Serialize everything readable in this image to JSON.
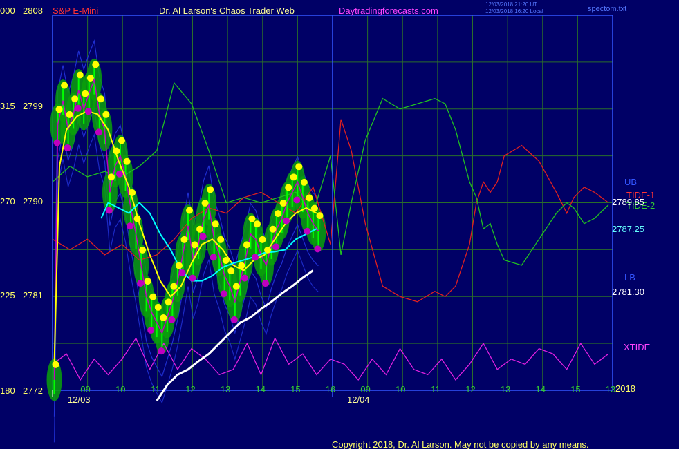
{
  "header": {
    "symbol": "S&P E-Mini",
    "title": "Dr. Al Larson's Chaos Trader Web",
    "site": "Daytradingforecasts.com",
    "timestamp_line1": "12/03/2018 21:20 UT",
    "timestamp_line2": "12/03/2018 16:20 Local",
    "spectrum_file": "spectom.txt"
  },
  "copyright": "Copyright 2018, Dr. Al Larson. May not be copied by any means.",
  "colors": {
    "background": "#000066",
    "grid": "#2a6e2a",
    "price_bars": "#00ff00",
    "halo": "#0aa00a",
    "high_dots": "#ffff00",
    "low_dots": "#c000c0",
    "yellow_ma": "#ffff00",
    "cyan_ma": "#00ffff",
    "white_ma": "#ffffff",
    "tide_1": "#e02020",
    "tide_2": "#20c020",
    "xtide": "#e020e0",
    "bands": "#2233dd"
  },
  "chart_data": {
    "type": "line",
    "title": "S&P E-Mini",
    "xlabel": "",
    "ylabel": "",
    "ylim": [
      2772,
      2808
    ],
    "grid": true,
    "y_ticks_price": [
      "2808",
      "2799",
      "2790",
      "2781",
      "2772"
    ],
    "y_ticks_left_scale": [
      "000",
      "315",
      "270",
      "225",
      "180"
    ],
    "x_tick_labels": [
      "09",
      "10",
      "11",
      "12",
      "13",
      "14",
      "15",
      "16",
      "09",
      "10",
      "11",
      "12",
      "13",
      "14",
      "15",
      "13"
    ],
    "year_label": "2018",
    "date_labels": [
      "12/03",
      "12/04"
    ],
    "right_labels": {
      "ub": "UB",
      "tide_1": "TIDE-1",
      "tide_2": "TIDE-2",
      "price_1": "2789.85",
      "price_2": "2787.25",
      "lb": "LB",
      "price_3": "2781.30",
      "xtide": "XTIDE"
    },
    "x_domain": [
      0,
      16
    ],
    "series": [
      {
        "name": "S&P E-Mini",
        "x": [
          0.05,
          0.15,
          0.3,
          0.45,
          0.6,
          0.75,
          0.9,
          1.05,
          1.2,
          1.35,
          1.5,
          1.65,
          1.8,
          1.95,
          2.1,
          2.25,
          2.4,
          2.55,
          2.7,
          2.85,
          3.0,
          3.15,
          3.3,
          3.45,
          3.6,
          3.75,
          3.9,
          4.05,
          4.2,
          4.35,
          4.5,
          4.65,
          4.8,
          4.95,
          5.1,
          5.25,
          5.4,
          5.55,
          5.7,
          5.85,
          6.0,
          6.15,
          6.3,
          6.45,
          6.6,
          6.75,
          6.9,
          7.05,
          7.2,
          7.35,
          7.5,
          7.65
        ],
        "values": [
          2773.0,
          2797.5,
          2799.8,
          2797.0,
          2798.5,
          2800.8,
          2799.0,
          2800.5,
          2801.8,
          2798.5,
          2797.0,
          2791.0,
          2793.5,
          2794.5,
          2792.5,
          2789.5,
          2787.0,
          2784.0,
          2781.0,
          2779.5,
          2778.5,
          2777.5,
          2779.0,
          2780.5,
          2782.5,
          2785.0,
          2787.8,
          2784.5,
          2786.0,
          2788.5,
          2789.8,
          2786.5,
          2785.0,
          2783.0,
          2782.0,
          2780.5,
          2782.5,
          2784.5,
          2787.0,
          2786.5,
          2785.0,
          2784.0,
          2786.0,
          2787.5,
          2788.5,
          2790.0,
          2791.0,
          2792.0,
          2790.5,
          2789.0,
          2788.0,
          2787.3
        ]
      },
      {
        "name": "yellow moving average",
        "x": [
          0.05,
          0.2,
          0.4,
          0.7,
          1.0,
          1.3,
          1.6,
          1.9,
          2.2,
          2.5,
          2.8,
          3.1,
          3.4,
          3.7,
          4.0,
          4.3,
          4.6,
          4.9,
          5.2,
          5.5,
          5.8,
          6.1,
          6.4,
          6.7,
          7.0,
          7.3,
          7.6
        ],
        "values": [
          2774.5,
          2793.5,
          2797.0,
          2798.3,
          2798.8,
          2798.5,
          2797.0,
          2794.0,
          2791.5,
          2788.0,
          2785.0,
          2782.5,
          2781.0,
          2782.0,
          2784.2,
          2786.0,
          2786.5,
          2785.5,
          2784.0,
          2783.5,
          2784.5,
          2785.0,
          2786.5,
          2788.0,
          2789.0,
          2789.5,
          2789.0
        ]
      },
      {
        "name": "cyan moving average",
        "x": [
          1.4,
          1.6,
          1.9,
          2.2,
          2.5,
          2.8,
          3.1,
          3.4,
          3.7,
          4.0,
          4.3,
          4.6,
          4.9,
          5.2,
          5.5,
          5.8,
          6.1,
          6.4,
          6.7,
          7.0,
          7.3,
          7.6
        ],
        "values": [
          2788.5,
          2790.0,
          2789.5,
          2789.0,
          2790.0,
          2789.0,
          2787.0,
          2785.5,
          2783.5,
          2782.5,
          2782.5,
          2783.0,
          2783.8,
          2784.2,
          2784.5,
          2784.8,
          2785.2,
          2785.3,
          2785.5,
          2786.5,
          2787.0,
          2787.5
        ]
      },
      {
        "name": "white moving average",
        "x": [
          3.0,
          3.3,
          3.6,
          3.9,
          4.2,
          4.5,
          4.8,
          5.1,
          5.4,
          5.7,
          6.0,
          6.3,
          6.6,
          6.9,
          7.2,
          7.5
        ],
        "values": [
          2771.0,
          2772.5,
          2773.5,
          2774.0,
          2774.8,
          2775.5,
          2776.5,
          2777.5,
          2778.5,
          2779.0,
          2779.8,
          2780.5,
          2781.3,
          2782.0,
          2782.8,
          2783.5
        ]
      },
      {
        "name": "TIDE-1",
        "x": [
          0,
          0.5,
          1.0,
          1.5,
          2.0,
          2.5,
          3.0,
          3.5,
          4.0,
          4.5,
          5.0,
          5.5,
          6.0,
          6.5,
          7.0,
          7.5,
          8.0,
          8.3,
          8.6,
          9.0,
          9.5,
          10.0,
          10.5,
          11.0,
          11.3,
          11.6,
          12.0,
          12.2,
          12.4,
          12.6,
          12.8,
          13.0,
          13.5,
          14.0,
          14.5,
          14.8,
          15.0,
          15.3,
          15.6,
          16.0
        ],
        "values": [
          2786.5,
          2785.5,
          2786.5,
          2785.0,
          2786.0,
          2784.5,
          2785.0,
          2786.5,
          2788.5,
          2789.5,
          2789.0,
          2790.5,
          2791.0,
          2790.0,
          2789.0,
          2791.5,
          2786.0,
          2798.0,
          2795.0,
          2788.0,
          2782.0,
          2781.0,
          2780.5,
          2781.5,
          2781.0,
          2782.0,
          2786.0,
          2790.0,
          2792.0,
          2791.0,
          2792.0,
          2794.5,
          2795.5,
          2794.0,
          2791.0,
          2789.0,
          2790.5,
          2791.5,
          2791.0,
          2790.0
        ]
      },
      {
        "name": "TIDE-2",
        "x": [
          0,
          0.5,
          1.0,
          1.5,
          2.0,
          2.5,
          3.0,
          3.5,
          4.0,
          4.5,
          5.0,
          5.5,
          6.0,
          6.5,
          7.0,
          7.5,
          8.0,
          8.3,
          8.6,
          9.0,
          9.5,
          10.0,
          10.5,
          11.0,
          11.3,
          11.6,
          12.0,
          12.2,
          12.4,
          12.6,
          12.8,
          13.0,
          13.5,
          14.0,
          14.5,
          14.8,
          15.0,
          15.3,
          15.6,
          16.0
        ],
        "values": [
          2792.0,
          2793.5,
          2792.5,
          2793.0,
          2792.5,
          2793.5,
          2795.0,
          2801.5,
          2799.5,
          2795.0,
          2790.0,
          2790.5,
          2790.0,
          2790.5,
          2791.0,
          2789.0,
          2794.5,
          2785.0,
          2790.0,
          2796.0,
          2800.0,
          2799.0,
          2799.5,
          2800.0,
          2799.5,
          2797.0,
          2792.0,
          2790.5,
          2787.5,
          2788.0,
          2786.0,
          2784.5,
          2784.0,
          2786.5,
          2789.0,
          2790.0,
          2789.5,
          2788.0,
          2788.5,
          2789.8
        ]
      },
      {
        "name": "XTIDE",
        "x": [
          0,
          0.4,
          0.8,
          1.2,
          1.6,
          2.0,
          2.4,
          2.8,
          3.2,
          3.6,
          4.0,
          4.4,
          4.8,
          5.2,
          5.6,
          6.0,
          6.4,
          6.8,
          7.2,
          7.6,
          8.0,
          8.4,
          8.8,
          9.2,
          9.6,
          10.0,
          10.4,
          10.8,
          11.2,
          11.6,
          12.0,
          12.4,
          12.8,
          13.2,
          13.6,
          14.0,
          14.4,
          14.8,
          15.2,
          15.6,
          16.0
        ],
        "values": [
          2774.5,
          2775.5,
          2773.0,
          2775.0,
          2773.5,
          2775.0,
          2777.0,
          2774.0,
          2776.5,
          2774.0,
          2776.0,
          2775.0,
          2773.5,
          2774.0,
          2776.5,
          2773.5,
          2777.0,
          2774.5,
          2775.5,
          2773.5,
          2775.0,
          2774.5,
          2773.0,
          2775.0,
          2773.5,
          2776.0,
          2774.0,
          2773.5,
          2775.0,
          2773.0,
          2774.5,
          2776.5,
          2774.0,
          2775.0,
          2774.5,
          2776.0,
          2775.5,
          2774.0,
          2776.5,
          2774.5,
          2775.5
        ]
      }
    ]
  }
}
